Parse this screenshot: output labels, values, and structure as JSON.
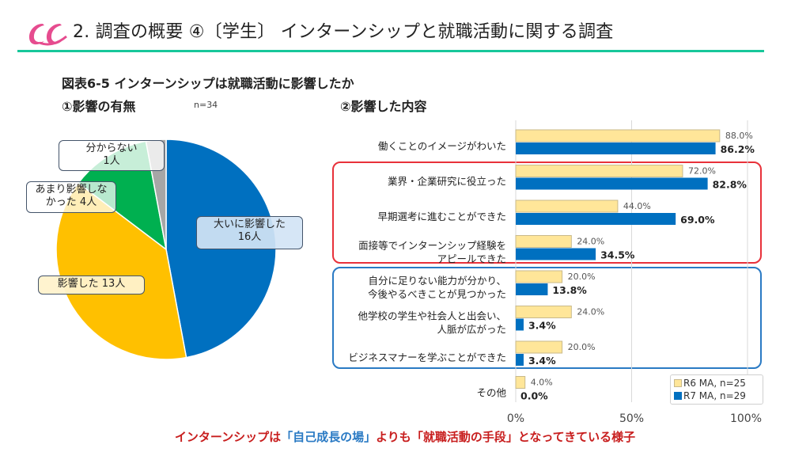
{
  "header": {
    "title": "2. 調査の概要 ④〔学生〕 インターンシップと就職活動に関する調査",
    "logo_icon": "brand-swirl-logo",
    "rule_color": "#17c79a"
  },
  "figure": {
    "title": "図表6-5 インターンシップは就職活動に影響したか",
    "section1_title": "①影響の有無",
    "section1_n": "n=34",
    "section2_title": "②影響した内容"
  },
  "chart_data": [
    {
      "type": "pie",
      "title": "①影響の有無",
      "n_label": "n=34",
      "slices": [
        {
          "label_line1": "大いに影響した",
          "label_line2": "16人",
          "value": 16,
          "color": "#0070c0"
        },
        {
          "label_line1": "影響した  13人",
          "label_line2": "",
          "value": 13,
          "color": "#ffc000"
        },
        {
          "label_line1": "あまり影響しな",
          "label_line2": "かった  4人",
          "value": 4,
          "color": "#00b050"
        },
        {
          "label_line1": "分からない",
          "label_line2": "1人",
          "value": 1,
          "color": "#a6a6a6"
        }
      ],
      "start": "12 o'clock",
      "direction": "clockwise"
    },
    {
      "type": "bar",
      "orientation": "horizontal",
      "title": "②影響した内容",
      "categories": [
        [
          "働くことのイメージがわいた"
        ],
        [
          "業界・企業研究に役立った"
        ],
        [
          "早期選考に進むことができた"
        ],
        [
          "面接等でインターンシップ経験を",
          "アピールできた"
        ],
        [
          "自分に足りない能力が分かり、",
          "今後やるべきことが見つかった"
        ],
        [
          "他学校の学生や社会人と出会い、",
          "人脈が広がった"
        ],
        [
          "ビジネスマナーを学ぶことができた"
        ],
        [
          "その他"
        ]
      ],
      "series": [
        {
          "name": "R6 MA, n=25",
          "color": "#ffe699",
          "border": "#c9b98a",
          "values": [
            88.0,
            72.0,
            44.0,
            24.0,
            20.0,
            24.0,
            20.0,
            4.0
          ],
          "labels": [
            "88.0%",
            "72.0%",
            "44.0%",
            "24.0%",
            "20.0%",
            "24.0%",
            "20.0%",
            "4.0%"
          ]
        },
        {
          "name": "R7 MA, n=29",
          "color": "#0070c0",
          "border": "#0070c0",
          "values": [
            86.2,
            82.8,
            69.0,
            34.5,
            13.8,
            3.4,
            3.4,
            0.0
          ],
          "labels": [
            "86.2%",
            "82.8%",
            "69.0%",
            "34.5%",
            "13.8%",
            "3.4%",
            "3.4%",
            "0.0%"
          ]
        }
      ],
      "xlim": [
        0,
        100
      ],
      "xticks": [
        "0%",
        "50%",
        "100%"
      ],
      "grid": true,
      "legend_position": "bottom-right",
      "highlight_groups": [
        {
          "color": "#e8313a",
          "from_category": 1,
          "to_category": 3
        },
        {
          "color": "#2a7ac4",
          "from_category": 4,
          "to_category": 6
        }
      ]
    }
  ],
  "footer": {
    "part1": "インターンシップは",
    "part2": "「自己成長の場」",
    "part3": "よりも",
    "part4": "「就職活動の手段」となってきている様子"
  }
}
